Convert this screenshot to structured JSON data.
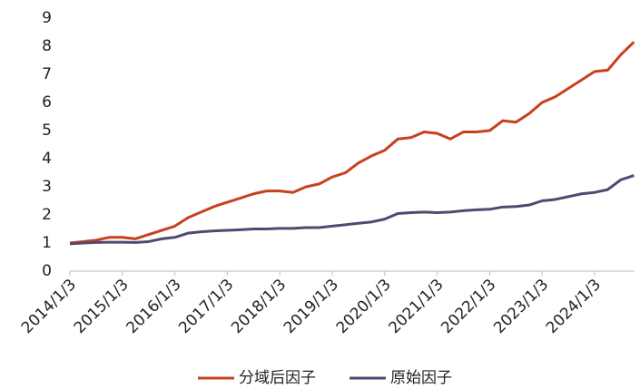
{
  "chart_data": {
    "type": "line",
    "categories": [
      "2014/1/3",
      null,
      null,
      null,
      "2015/1/3",
      null,
      null,
      null,
      "2016/1/3",
      null,
      null,
      null,
      "2017/1/3",
      null,
      null,
      null,
      "2018/1/3",
      null,
      null,
      null,
      "2019/1/3",
      null,
      null,
      null,
      "2020/1/3",
      null,
      null,
      null,
      "2021/1/3",
      null,
      null,
      null,
      "2022/1/3",
      null,
      null,
      null,
      "2023/1/3",
      null,
      null,
      null,
      "2024/1/3",
      null,
      null,
      null
    ],
    "series": [
      {
        "name": "分域后因子",
        "color": "#c8401e",
        "values": [
          1.0,
          1.05,
          1.1,
          1.2,
          1.2,
          1.15,
          1.3,
          1.45,
          1.6,
          1.9,
          2.1,
          2.3,
          2.45,
          2.6,
          2.75,
          2.85,
          2.85,
          2.8,
          3.0,
          3.1,
          3.35,
          3.5,
          3.85,
          4.1,
          4.3,
          4.7,
          4.75,
          4.95,
          4.9,
          4.7,
          4.95,
          4.95,
          5.0,
          5.35,
          5.3,
          5.6,
          6.0,
          6.2,
          6.5,
          6.8,
          7.1,
          7.15,
          7.7,
          8.15
        ]
      },
      {
        "name": "原始因子",
        "color": "#4f4a72",
        "values": [
          0.97,
          1.0,
          1.02,
          1.03,
          1.03,
          1.02,
          1.05,
          1.15,
          1.2,
          1.35,
          1.4,
          1.43,
          1.45,
          1.47,
          1.5,
          1.5,
          1.52,
          1.52,
          1.55,
          1.55,
          1.6,
          1.65,
          1.7,
          1.75,
          1.85,
          2.05,
          2.08,
          2.1,
          2.08,
          2.1,
          2.15,
          2.18,
          2.2,
          2.28,
          2.3,
          2.35,
          2.5,
          2.55,
          2.65,
          2.75,
          2.8,
          2.9,
          3.25,
          3.4
        ]
      }
    ],
    "ylim": [
      0,
      9
    ],
    "yticks": [
      0,
      1,
      2,
      3,
      4,
      5,
      6,
      7,
      8,
      9
    ],
    "grid": false,
    "legend": "bottom"
  }
}
